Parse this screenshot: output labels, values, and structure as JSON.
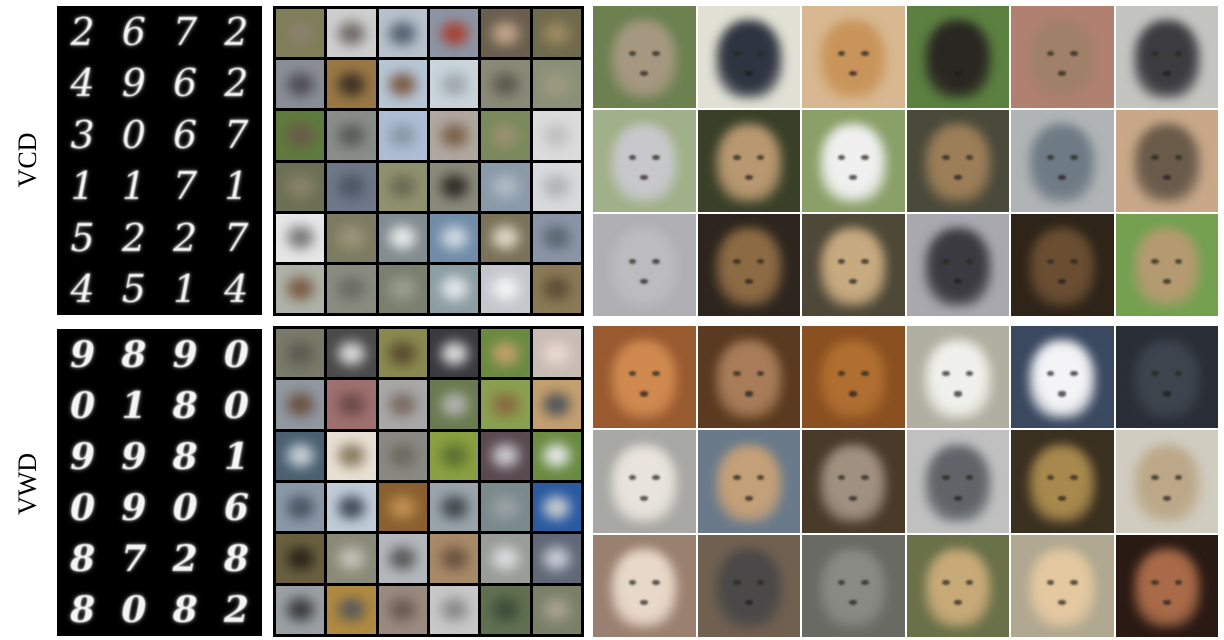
{
  "rows": [
    {
      "label": "VCD",
      "digits": [
        "2",
        "6",
        "7",
        "2",
        "4",
        "9",
        "6",
        "2",
        "3",
        "0",
        "6",
        "7",
        "1",
        "1",
        "7",
        "1",
        "5",
        "2",
        "2",
        "7",
        "4",
        "5",
        "1",
        "4"
      ],
      "cifar_colors": [
        [
          "#7f7e58",
          "#8a8170"
        ],
        [
          "#cfcfcf",
          "#6f6a66"
        ],
        [
          "#b8c2cc",
          "#546070"
        ],
        [
          "#8c95a5",
          "#a84030"
        ],
        [
          "#6a5e4e",
          "#c4a58a"
        ],
        [
          "#6f6a4c",
          "#9c8a60"
        ],
        [
          "#8a8e96",
          "#4e4e54"
        ],
        [
          "#9a7846",
          "#3c3022"
        ],
        [
          "#b7c6d6",
          "#7a5a44"
        ],
        [
          "#c9d4dc",
          "#a0a8ae"
        ],
        [
          "#8a8a78",
          "#5c5a4e"
        ],
        [
          "#8a9078",
          "#a09a7e"
        ],
        [
          "#5f7a3e",
          "#6a5a48"
        ],
        [
          "#8a8e8a",
          "#5a5a5a"
        ],
        [
          "#aebed4",
          "#8a98a8"
        ],
        [
          "#b0a8a0",
          "#7a6048"
        ],
        [
          "#7a8a5c",
          "#9a9070"
        ],
        [
          "#dcdcdc",
          "#c0c0c0"
        ],
        [
          "#6c7054",
          "#8a8468"
        ],
        [
          "#6e7888",
          "#4c5664"
        ],
        [
          "#90926e",
          "#6a6a56"
        ],
        [
          "#8a8a7a",
          "#2e2a26"
        ],
        [
          "#8a9aa8",
          "#b0bac4"
        ],
        [
          "#d8dadc",
          "#b0b4b8"
        ],
        [
          "#e6e6e6",
          "#7a7a7a"
        ],
        [
          "#7c7c62",
          "#9c9478"
        ],
        [
          "#808c90",
          "#eaeaea"
        ],
        [
          "#708ca8",
          "#d0d8e0"
        ],
        [
          "#7a7258",
          "#e0d8c8"
        ],
        [
          "#8a96a6",
          "#5c6670"
        ],
        [
          "#aeb2a8",
          "#7a5a44"
        ],
        [
          "#8a8c80",
          "#6a6a62"
        ],
        [
          "#7a8070",
          "#9a9c8e"
        ],
        [
          "#8c9ea4",
          "#e4e8ea"
        ],
        [
          "#c4c8cc",
          "#f4f4f4"
        ],
        [
          "#8a7a56",
          "#5c4e36"
        ]
      ],
      "face_colors": [
        [
          "#6c8050",
          "#a69880"
        ],
        [
          "#e0e0d4",
          "#2e3440"
        ],
        [
          "#d8b890",
          "#c8945a"
        ],
        [
          "#5c8040",
          "#2a2622"
        ],
        [
          "#b08070",
          "#a08068"
        ],
        [
          "#c4c4c0",
          "#3c3c40"
        ],
        [
          "#a0b088",
          "#c8c8cc"
        ],
        [
          "#3a4028",
          "#b89870"
        ],
        [
          "#8aa068",
          "#f0f0f0"
        ],
        [
          "#4a4a3a",
          "#9c7e58"
        ],
        [
          "#b0b4b4",
          "#6e7a84"
        ],
        [
          "#c8a888",
          "#6a5a4a"
        ],
        [
          "#b0b0b4",
          "#bcbcc0"
        ],
        [
          "#2e261e",
          "#8c6a44"
        ],
        [
          "#4e4838",
          "#c8aa80"
        ],
        [
          "#a8a8ae",
          "#3a3a40"
        ],
        [
          "#2e2418",
          "#6a4e32"
        ],
        [
          "#74a050",
          "#b49a70"
        ]
      ]
    },
    {
      "label": "VWD",
      "digits": [
        "9",
        "8",
        "9",
        "0",
        "0",
        "1",
        "8",
        "0",
        "9",
        "9",
        "8",
        "1",
        "0",
        "9",
        "0",
        "6",
        "8",
        "7",
        "2",
        "8",
        "8",
        "0",
        "8",
        "2"
      ],
      "cifar_colors": [
        [
          "#7a7a6a",
          "#5a5a50"
        ],
        [
          "#4a4a4a",
          "#dadada"
        ],
        [
          "#8a8a50",
          "#5a4a30"
        ],
        [
          "#3a3a3e",
          "#dcdcdc"
        ],
        [
          "#6a8a40",
          "#c4a068"
        ],
        [
          "#c8bcb4",
          "#e8d8d0"
        ],
        [
          "#9098a0",
          "#6a5040"
        ],
        [
          "#a07070",
          "#6a4a4a"
        ],
        [
          "#a8a8a8",
          "#7a6a60"
        ],
        [
          "#6a7a50",
          "#b0b4b0"
        ],
        [
          "#8aa050",
          "#8a6a40"
        ],
        [
          "#c4a070",
          "#505458"
        ],
        [
          "#4a6070",
          "#c8d0d8"
        ],
        [
          "#e8e0d4",
          "#8a7a60"
        ],
        [
          "#8a8a84",
          "#6a6a60"
        ],
        [
          "#8aa040",
          "#5c7030"
        ],
        [
          "#5a4a50",
          "#cacacc"
        ],
        [
          "#6a8a40",
          "#e4e8e8"
        ],
        [
          "#8a98a8",
          "#4a5460"
        ],
        [
          "#c0ccd8",
          "#404858"
        ],
        [
          "#8a6030",
          "#c09050"
        ],
        [
          "#9aa4ac",
          "#40484c"
        ],
        [
          "#7a8a8c",
          "#9aa0a4"
        ],
        [
          "#2a5aa0",
          "#c8ccd0"
        ],
        [
          "#6a6040",
          "#2a2418"
        ],
        [
          "#8a8a78",
          "#c0c0b4"
        ],
        [
          "#b4b8bc",
          "#5a5a58"
        ],
        [
          "#a88a68",
          "#6a5440"
        ],
        [
          "#9a9c98",
          "#d8dcdc"
        ],
        [
          "#606878",
          "#c8ccd4"
        ],
        [
          "#9aa0a4",
          "#3a3a3c"
        ],
        [
          "#b08a40",
          "#5a5a5a"
        ],
        [
          "#9a8a80",
          "#6a5a50"
        ],
        [
          "#c8c8c8",
          "#8a8a8a"
        ],
        [
          "#607050",
          "#3c4c3a"
        ],
        [
          "#7a8068",
          "#a8a090"
        ]
      ],
      "face_colors": [
        [
          "#9a5a30",
          "#d08a50"
        ],
        [
          "#5a3a20",
          "#a87c58"
        ],
        [
          "#8a5020",
          "#b06e30"
        ],
        [
          "#b0b0a0",
          "#f0f0ec"
        ],
        [
          "#3a4860",
          "#f4f4f6"
        ],
        [
          "#2a2e36",
          "#3e444e"
        ],
        [
          "#a8a8a4",
          "#e8e4dc"
        ],
        [
          "#6a7a8a",
          "#c4a078"
        ],
        [
          "#4a3a2a",
          "#a09080"
        ],
        [
          "#c0c0c0",
          "#606468"
        ],
        [
          "#3a3020",
          "#a8884c"
        ],
        [
          "#d0ccc0",
          "#bca888"
        ],
        [
          "#9a8070",
          "#e8d8c8"
        ],
        [
          "#706050",
          "#4a4848"
        ],
        [
          "#6a6a64",
          "#8a8a84"
        ],
        [
          "#6a7048",
          "#c8aa78"
        ],
        [
          "#b0a890",
          "#e4c8a0"
        ],
        [
          "#2a1a14",
          "#a86a48"
        ]
      ]
    }
  ]
}
